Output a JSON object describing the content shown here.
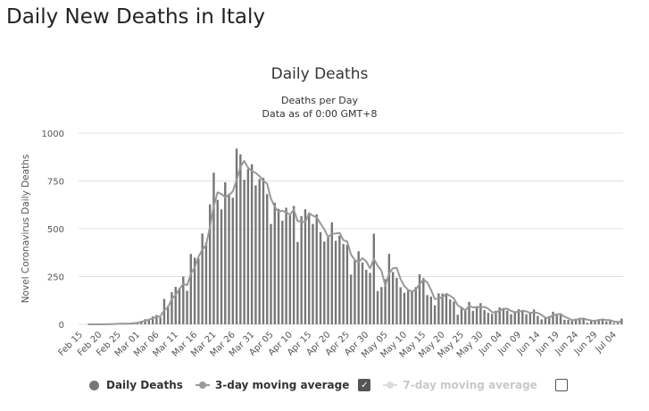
{
  "page_title": "Daily New Deaths in Italy",
  "chart_data": {
    "type": "bar",
    "title": "Daily Deaths",
    "subtitle_lines": [
      "Deaths per Day",
      "Data as of 0:00 GMT+8"
    ],
    "ylabel": "Novel Coronavirus Daily Deaths",
    "xlabel": "",
    "ylim": [
      0,
      1000
    ],
    "yticks": [
      0,
      250,
      500,
      750,
      1000
    ],
    "grid": true,
    "legend_placement": "bottom",
    "colors": {
      "bars": "#777777",
      "line": "#999999",
      "hidden": "#dddddd"
    },
    "categories": [
      "Feb 15",
      "Feb 16",
      "Feb 17",
      "Feb 18",
      "Feb 19",
      "Feb 20",
      "Feb 21",
      "Feb 22",
      "Feb 23",
      "Feb 24",
      "Feb 25",
      "Feb 26",
      "Feb 27",
      "Feb 28",
      "Feb 29",
      "Mar 01",
      "Mar 02",
      "Mar 03",
      "Mar 04",
      "Mar 05",
      "Mar 06",
      "Mar 07",
      "Mar 08",
      "Mar 09",
      "Mar 10",
      "Mar 11",
      "Mar 12",
      "Mar 13",
      "Mar 14",
      "Mar 15",
      "Mar 16",
      "Mar 17",
      "Mar 18",
      "Mar 19",
      "Mar 20",
      "Mar 21",
      "Mar 22",
      "Mar 23",
      "Mar 24",
      "Mar 25",
      "Mar 26",
      "Mar 27",
      "Mar 28",
      "Mar 29",
      "Mar 30",
      "Mar 31",
      "Apr 01",
      "Apr 02",
      "Apr 03",
      "Apr 04",
      "Apr 05",
      "Apr 06",
      "Apr 07",
      "Apr 08",
      "Apr 09",
      "Apr 10",
      "Apr 11",
      "Apr 12",
      "Apr 13",
      "Apr 14",
      "Apr 15",
      "Apr 16",
      "Apr 17",
      "Apr 18",
      "Apr 19",
      "Apr 20",
      "Apr 21",
      "Apr 22",
      "Apr 23",
      "Apr 24",
      "Apr 25",
      "Apr 26",
      "Apr 27",
      "Apr 28",
      "Apr 29",
      "Apr 30",
      "May 01",
      "May 02",
      "May 03",
      "May 04",
      "May 05",
      "May 06",
      "May 07",
      "May 08",
      "May 09",
      "May 10",
      "May 11",
      "May 12",
      "May 13",
      "May 14",
      "May 15",
      "May 16",
      "May 17",
      "May 18",
      "May 19",
      "May 20",
      "May 21",
      "May 22",
      "May 23",
      "May 24",
      "May 25",
      "May 26",
      "May 27",
      "May 28",
      "May 29",
      "May 30",
      "May 31",
      "Jun 01",
      "Jun 02",
      "Jun 03",
      "Jun 04",
      "Jun 05",
      "Jun 06",
      "Jun 07",
      "Jun 08",
      "Jun 09",
      "Jun 10",
      "Jun 11",
      "Jun 12",
      "Jun 13",
      "Jun 14",
      "Jun 15",
      "Jun 16",
      "Jun 17",
      "Jun 18",
      "Jun 19",
      "Jun 20",
      "Jun 21",
      "Jun 22",
      "Jun 23",
      "Jun 24",
      "Jun 25",
      "Jun 26",
      "Jun 27",
      "Jun 28",
      "Jun 29",
      "Jun 30",
      "Jul 01",
      "Jul 02",
      "Jul 03",
      "Jul 04",
      "Jul 05",
      "Jul 06"
    ],
    "tick_labels": [
      "Feb 15",
      "Feb 20",
      "Feb 25",
      "Mar 01",
      "Mar 06",
      "Mar 11",
      "Mar 16",
      "Mar 21",
      "Mar 26",
      "Mar 31",
      "Apr 05",
      "Apr 10",
      "Apr 15",
      "Apr 20",
      "Apr 25",
      "Apr 30",
      "May 05",
      "May 10",
      "May 15",
      "May 20",
      "May 25",
      "May 30",
      "Jun 04",
      "Jun 09",
      "Jun 14",
      "Jun 19",
      "Jun 24",
      "Jun 29",
      "Jul 04"
    ],
    "series": [
      {
        "name": "Daily Deaths",
        "visible": true,
        "values": [
          0,
          0,
          0,
          0,
          0,
          0,
          1,
          1,
          1,
          4,
          4,
          2,
          5,
          4,
          8,
          12,
          18,
          27,
          28,
          41,
          49,
          36,
          133,
          97,
          168,
          196,
          189,
          250,
          175,
          368,
          349,
          345,
          475,
          427,
          627,
          793,
          651,
          601,
          743,
          683,
          662,
          919,
          889,
          756,
          812,
          837,
          727,
          760,
          766,
          681,
          525,
          636,
          604,
          542,
          610,
          570,
          619,
          431,
          566,
          602,
          578,
          525,
          575,
          482,
          433,
          454,
          534,
          437,
          464,
          420,
          415,
          260,
          333,
          382,
          323,
          285,
          269,
          474,
          174,
          195,
          236,
          369,
          274,
          243,
          194,
          165,
          179,
          172,
          195,
          262,
          242,
          153,
          145,
          99,
          162,
          161,
          156,
          130,
          119,
          50,
          92,
          78,
          117,
          70,
          87,
          111,
          75,
          60,
          55,
          71,
          88,
          85,
          72,
          53,
          65,
          79,
          71,
          53,
          56,
          78,
          44,
          26,
          34,
          43,
          66,
          47,
          49,
          24,
          23,
          18,
          30,
          34,
          30,
          8,
          24,
          22,
          23,
          30,
          15,
          21,
          7,
          8,
          30
        ]
      },
      {
        "name": "3-day moving average",
        "visible": true,
        "checked": true
      },
      {
        "name": "7-day moving average",
        "visible": false,
        "checked": false
      }
    ]
  }
}
